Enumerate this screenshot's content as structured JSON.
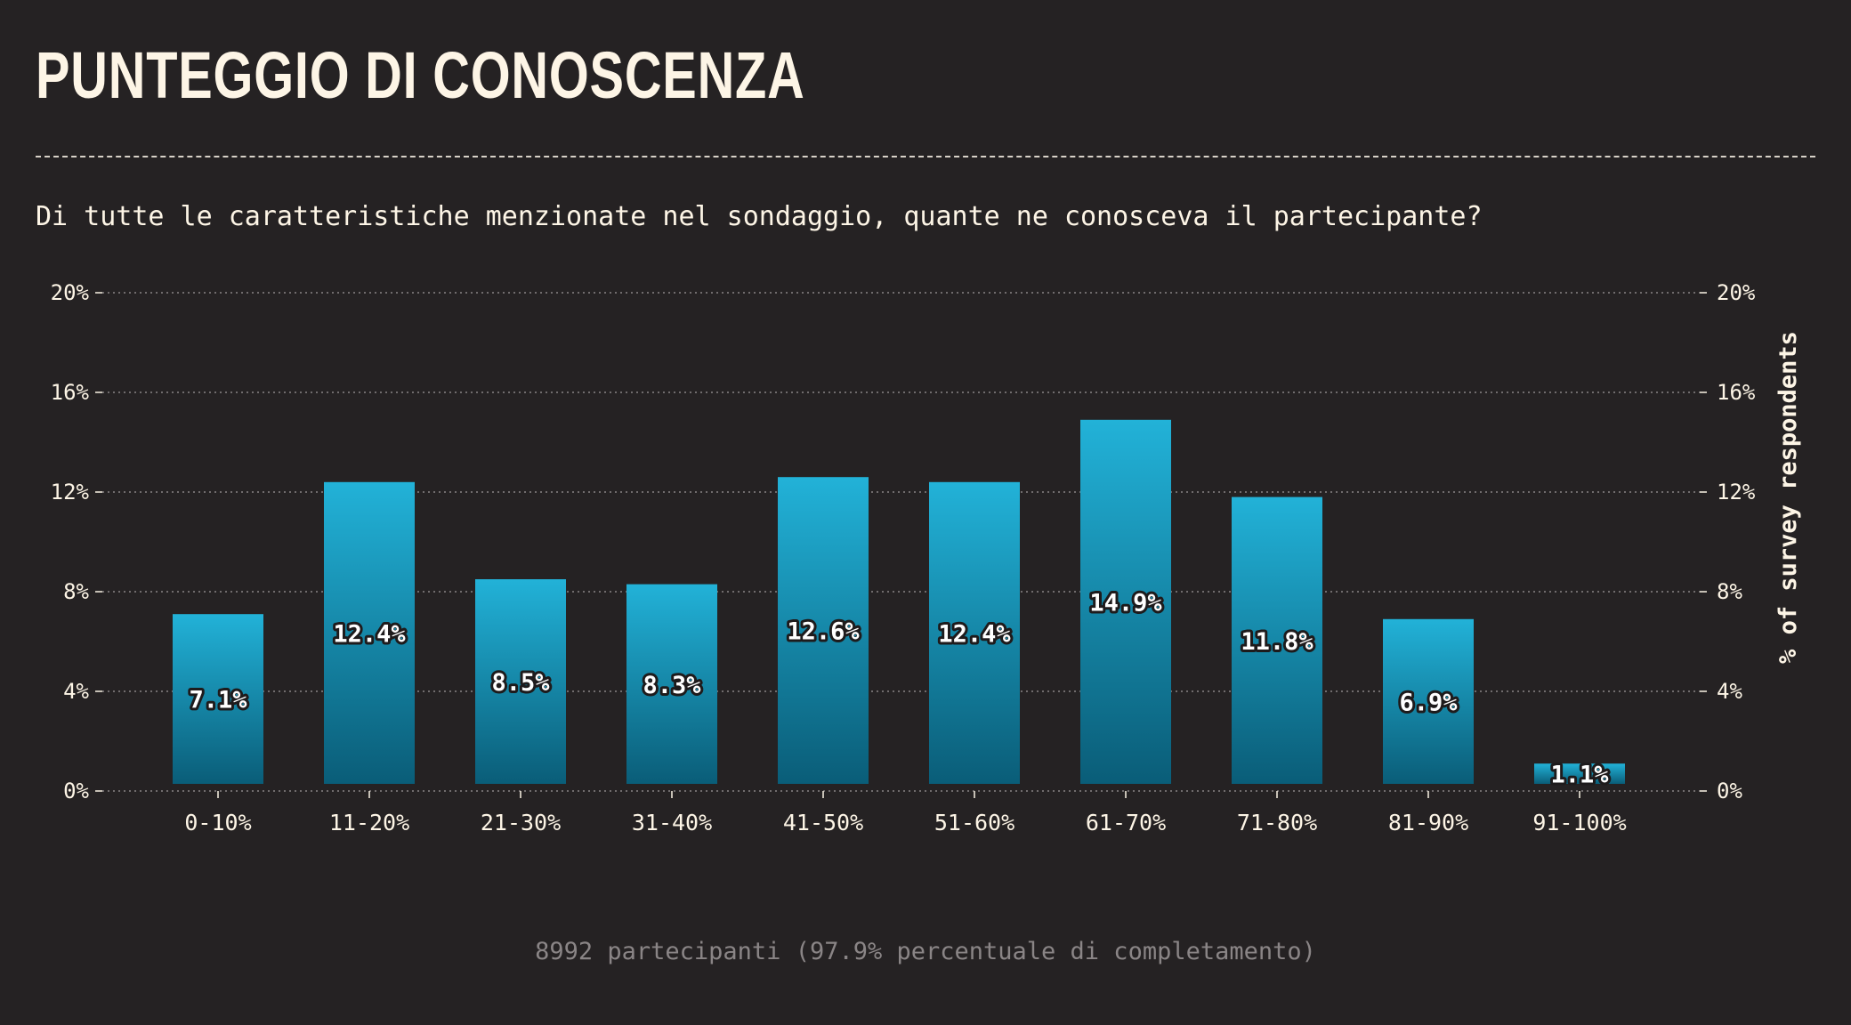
{
  "title": "PUNTEGGIO DI CONOSCENZA",
  "subtitle": "Di tutte le caratteristiche menzionate nel sondaggio, quante ne conosceva il partecipante?",
  "footer": "8992 partecipanti (97.9% percentuale di completamento)",
  "colors": {
    "background": "#252223",
    "bar_top": "#22b2d8",
    "bar_bottom": "#0a5d78",
    "text": "#fdf5e6",
    "grid": "#8a8586"
  },
  "chart_data": {
    "type": "bar",
    "categories": [
      "0-10%",
      "11-20%",
      "21-30%",
      "31-40%",
      "41-50%",
      "51-60%",
      "61-70%",
      "71-80%",
      "81-90%",
      "91-100%"
    ],
    "values": [
      7.1,
      12.4,
      8.5,
      8.3,
      12.6,
      12.4,
      14.9,
      11.8,
      6.9,
      1.1
    ],
    "value_labels": [
      "7.1%",
      "12.4%",
      "8.5%",
      "8.3%",
      "12.6%",
      "12.4%",
      "14.9%",
      "11.8%",
      "6.9%",
      "1.1%"
    ],
    "ylabel": "% of survey respondents",
    "ylim": [
      0,
      20
    ],
    "yticks": [
      0,
      4,
      8,
      12,
      16,
      20
    ],
    "ytick_labels": [
      "0%",
      "4%",
      "8%",
      "12%",
      "16%",
      "20%"
    ],
    "grid": true,
    "y_axis_both_sides": true
  }
}
